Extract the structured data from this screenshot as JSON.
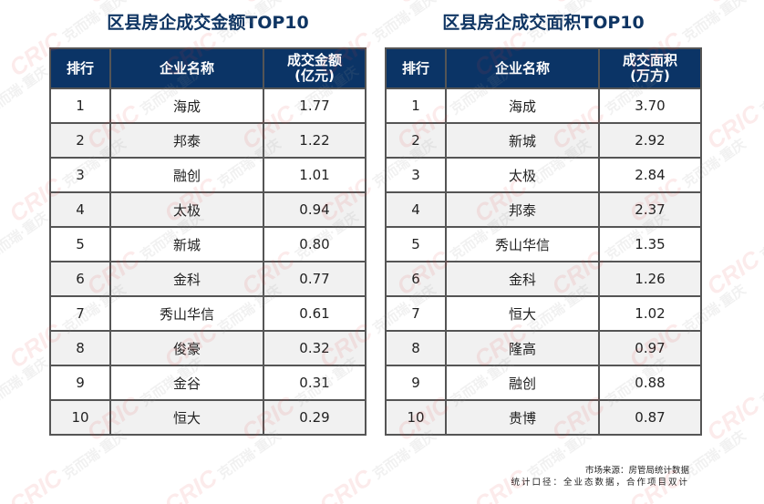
{
  "tables": [
    {
      "title": "区县房企成交金额TOP10",
      "headers": {
        "rank": "排行",
        "name": "企业名称",
        "value_line1": "成交金额",
        "value_line2": "(亿元)"
      },
      "rows": [
        {
          "rank": "1",
          "name": "海成",
          "value": "1.77"
        },
        {
          "rank": "2",
          "name": "邦泰",
          "value": "1.22"
        },
        {
          "rank": "3",
          "name": "融创",
          "value": "1.01"
        },
        {
          "rank": "4",
          "name": "太极",
          "value": "0.94"
        },
        {
          "rank": "5",
          "name": "新城",
          "value": "0.80"
        },
        {
          "rank": "6",
          "name": "金科",
          "value": "0.77"
        },
        {
          "rank": "7",
          "name": "秀山华信",
          "value": "0.61"
        },
        {
          "rank": "8",
          "name": "俊豪",
          "value": "0.32"
        },
        {
          "rank": "9",
          "name": "金谷",
          "value": "0.31"
        },
        {
          "rank": "10",
          "name": "恒大",
          "value": "0.29"
        }
      ]
    },
    {
      "title": "区县房企成交面积TOP10",
      "headers": {
        "rank": "排行",
        "name": "企业名称",
        "value_line1": "成交面积",
        "value_line2": "(万方)"
      },
      "rows": [
        {
          "rank": "1",
          "name": "海成",
          "value": "3.70"
        },
        {
          "rank": "2",
          "name": "新城",
          "value": "2.92"
        },
        {
          "rank": "3",
          "name": "太极",
          "value": "2.84"
        },
        {
          "rank": "4",
          "name": "邦泰",
          "value": "2.37"
        },
        {
          "rank": "5",
          "name": "秀山华信",
          "value": "1.35"
        },
        {
          "rank": "6",
          "name": "金科",
          "value": "1.26"
        },
        {
          "rank": "7",
          "name": "恒大",
          "value": "1.02"
        },
        {
          "rank": "8",
          "name": "隆高",
          "value": "0.97"
        },
        {
          "rank": "9",
          "name": "融创",
          "value": "0.88"
        },
        {
          "rank": "10",
          "name": "贵博",
          "value": "0.87"
        }
      ]
    }
  ],
  "footer": {
    "source": "市场来源：房管局统计数据",
    "scope": "统计口径：全业态数据，合作项目双计"
  },
  "watermark": {
    "brand": "CRIC",
    "text": "克而瑞·重庆"
  },
  "colors": {
    "header_bg": "#0b3466",
    "title": "#0f3563",
    "row_alt": "#f1f1f1",
    "border": "#555555"
  }
}
